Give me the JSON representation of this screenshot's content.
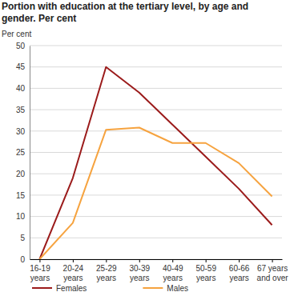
{
  "chart_data": {
    "type": "line",
    "title": "Portion with education at the tertiary level, by age and gender. Per cent",
    "y_label": "Per cent",
    "categories": [
      "16-19 years",
      "20-24 years",
      "25-29 years",
      "30-39 years",
      "40-49 years",
      "50-59 years",
      "60-66 years",
      "67 years and over"
    ],
    "series": [
      {
        "name": "Females",
        "color": "#9b1b1b",
        "values": [
          0,
          19,
          45,
          39,
          31.5,
          24,
          16.5,
          8
        ]
      },
      {
        "name": "Males",
        "color": "#f6a33f",
        "values": [
          0,
          8.5,
          30.3,
          30.8,
          27.2,
          27.2,
          22.5,
          14.7
        ]
      }
    ],
    "ylim": [
      0,
      50
    ],
    "yticks": [
      0,
      5,
      10,
      15,
      20,
      25,
      30,
      35,
      40,
      45,
      50
    ],
    "grid": true,
    "legend": "bottom"
  }
}
